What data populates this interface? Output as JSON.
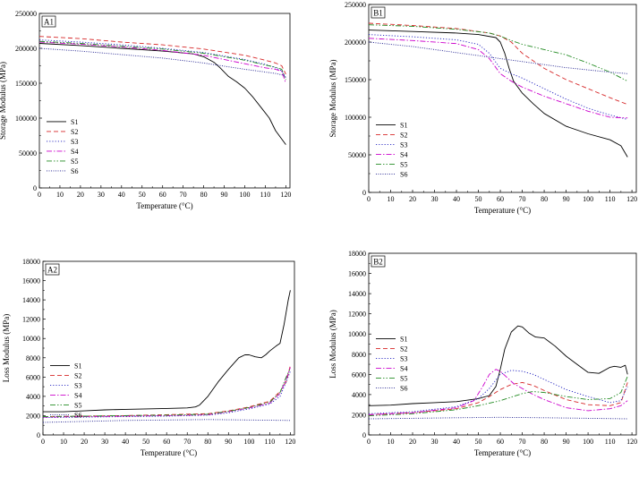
{
  "chart_data": [
    {
      "panel_label": "A1",
      "type": "line",
      "xlabel": "Temperature (°C)",
      "ylabel": "Storage Modulus (MPa)",
      "xlim": [
        0,
        122
      ],
      "ylim": [
        0,
        250000
      ],
      "xticks": [
        "0",
        "10",
        "20",
        "30",
        "40",
        "50",
        "60",
        "70",
        "80",
        "90",
        "100",
        "110",
        "120"
      ],
      "yticks": [
        "0",
        "50000",
        "100000",
        "150000",
        "200000",
        "250000"
      ],
      "grid": false,
      "legend": "bottom-left",
      "series": [
        {
          "name": "S1",
          "style": "solid",
          "color": "#000000",
          "x": [
            0,
            20,
            40,
            60,
            75,
            80,
            85,
            88,
            92,
            96,
            100,
            104,
            108,
            112,
            115,
            118,
            120
          ],
          "y": [
            207000,
            204000,
            200000,
            196000,
            192000,
            188000,
            180000,
            172000,
            160000,
            152000,
            143000,
            130000,
            115000,
            100000,
            82000,
            70000,
            62000
          ]
        },
        {
          "name": "S2",
          "style": "dash",
          "color": "#d62728",
          "x": [
            0,
            20,
            40,
            60,
            80,
            100,
            110,
            115,
            118,
            120
          ],
          "y": [
            217000,
            214000,
            209000,
            205000,
            199000,
            190000,
            183000,
            179000,
            175000,
            163000
          ]
        },
        {
          "name": "S3",
          "style": "dot",
          "color": "#1f1fbf",
          "x": [
            0,
            20,
            40,
            60,
            80,
            100,
            110,
            115,
            118,
            120
          ],
          "y": [
            212000,
            209000,
            205000,
            200000,
            194000,
            184000,
            177000,
            172000,
            168000,
            158000
          ]
        },
        {
          "name": "S4",
          "style": "dashdot",
          "color": "#cc00cc",
          "x": [
            0,
            20,
            40,
            60,
            80,
            100,
            110,
            115,
            118,
            120
          ],
          "y": [
            209000,
            206000,
            202000,
            197000,
            190000,
            178000,
            172000,
            170000,
            167000,
            150000
          ]
        },
        {
          "name": "S5",
          "style": "dashdotdot",
          "color": "#228b22",
          "x": [
            0,
            20,
            40,
            60,
            80,
            100,
            110,
            115,
            118,
            120
          ],
          "y": [
            210000,
            207000,
            203000,
            199000,
            193000,
            183000,
            176000,
            173000,
            170000,
            155000
          ]
        },
        {
          "name": "S6",
          "style": "shortdot",
          "color": "#1a1a8c",
          "x": [
            0,
            20,
            40,
            60,
            80,
            100,
            110,
            115,
            118,
            120
          ],
          "y": [
            200000,
            196000,
            191000,
            186000,
            179000,
            170000,
            166000,
            164000,
            162000,
            160000
          ]
        }
      ]
    },
    {
      "panel_label": "B1",
      "type": "line",
      "xlabel": "Temperature (°C)",
      "ylabel": "Storage Modulus (MPa)",
      "xlim": [
        0,
        122
      ],
      "ylim": [
        0,
        250000
      ],
      "xticks": [
        "0",
        "10",
        "20",
        "30",
        "40",
        "50",
        "60",
        "70",
        "80",
        "90",
        "100",
        "110",
        "120"
      ],
      "yticks": [
        "0",
        "50000",
        "100000",
        "150000",
        "200000",
        "250000"
      ],
      "grid": false,
      "legend": "bottom-left",
      "series": [
        {
          "name": "S1",
          "style": "solid",
          "color": "#000000",
          "x": [
            0,
            20,
            40,
            50,
            58,
            60,
            62,
            64,
            66,
            70,
            75,
            80,
            90,
            100,
            110,
            115,
            118
          ],
          "y": [
            216000,
            214000,
            212000,
            210000,
            206000,
            200000,
            185000,
            165000,
            148000,
            132000,
            118000,
            105000,
            88000,
            78000,
            70000,
            62000,
            47000
          ]
        },
        {
          "name": "S2",
          "style": "dash",
          "color": "#d62728",
          "x": [
            0,
            20,
            40,
            55,
            60,
            65,
            70,
            80,
            90,
            100,
            110,
            118
          ],
          "y": [
            225000,
            222000,
            218000,
            212000,
            208000,
            200000,
            185000,
            165000,
            150000,
            138000,
            126000,
            117000
          ]
        },
        {
          "name": "S3",
          "style": "dot",
          "color": "#1f1fbf",
          "x": [
            0,
            20,
            40,
            50,
            55,
            60,
            65,
            70,
            80,
            90,
            100,
            110,
            118
          ],
          "y": [
            210000,
            207000,
            203000,
            197000,
            185000,
            165000,
            158000,
            152000,
            138000,
            124000,
            112000,
            103000,
            97000
          ]
        },
        {
          "name": "S4",
          "style": "dashdot",
          "color": "#cc00cc",
          "x": [
            0,
            20,
            40,
            50,
            55,
            60,
            65,
            70,
            80,
            90,
            100,
            110,
            118
          ],
          "y": [
            205000,
            202000,
            198000,
            190000,
            178000,
            158000,
            148000,
            140000,
            128000,
            118000,
            108000,
            100000,
            99000
          ]
        },
        {
          "name": "S5",
          "style": "dashdotdot",
          "color": "#228b22",
          "x": [
            0,
            20,
            40,
            55,
            60,
            65,
            70,
            80,
            90,
            100,
            110,
            118
          ],
          "y": [
            223000,
            221000,
            217000,
            212000,
            208000,
            202000,
            197000,
            190000,
            183000,
            172000,
            160000,
            148000
          ]
        },
        {
          "name": "S6",
          "style": "shortdot",
          "color": "#1a1a8c",
          "x": [
            0,
            10,
            20,
            30,
            40,
            50,
            60,
            70,
            80,
            90,
            100,
            110,
            118
          ],
          "y": [
            200000,
            197000,
            194000,
            190000,
            186000,
            182000,
            178000,
            174000,
            170000,
            166000,
            163000,
            160000,
            158000
          ]
        }
      ]
    },
    {
      "panel_label": "A2",
      "type": "line",
      "xlabel": "Temperature (°C)",
      "ylabel": "Loss Modulus (MPa)",
      "xlim": [
        0,
        122
      ],
      "ylim": [
        0,
        18000
      ],
      "xticks": [
        "0",
        "10",
        "20",
        "30",
        "40",
        "50",
        "60",
        "70",
        "80",
        "90",
        "100",
        "110",
        "120"
      ],
      "yticks": [
        "0",
        "2000",
        "4000",
        "6000",
        "8000",
        "10000",
        "12000",
        "14000",
        "16000",
        "18000"
      ],
      "grid": false,
      "legend": "left",
      "series": [
        {
          "name": "S1",
          "style": "solid",
          "color": "#000000",
          "x": [
            0,
            10,
            20,
            30,
            40,
            50,
            60,
            70,
            74,
            76,
            80,
            85,
            90,
            95,
            98,
            100,
            103,
            106,
            108,
            110,
            113,
            115,
            117,
            119,
            120
          ],
          "y": [
            2400,
            2400,
            2500,
            2600,
            2650,
            2700,
            2750,
            2800,
            2900,
            3100,
            4000,
            5500,
            6800,
            8000,
            8300,
            8300,
            8100,
            8000,
            8300,
            8700,
            9200,
            9500,
            11500,
            14000,
            15000
          ]
        },
        {
          "name": "S2",
          "style": "dash",
          "color": "#d62728",
          "x": [
            0,
            20,
            40,
            60,
            80,
            90,
            100,
            110,
            115,
            118,
            120
          ],
          "y": [
            1900,
            1950,
            2000,
            2100,
            2200,
            2500,
            2900,
            3500,
            4500,
            5500,
            7200
          ]
        },
        {
          "name": "S3",
          "style": "dot",
          "color": "#1f1fbf",
          "x": [
            0,
            20,
            40,
            60,
            80,
            90,
            100,
            110,
            115,
            118,
            120
          ],
          "y": [
            1800,
            1850,
            1900,
            1950,
            2050,
            2300,
            2700,
            3200,
            4000,
            5500,
            6600
          ]
        },
        {
          "name": "S4",
          "style": "dashdot",
          "color": "#cc00cc",
          "x": [
            0,
            20,
            40,
            60,
            80,
            90,
            100,
            110,
            115,
            118,
            120
          ],
          "y": [
            1850,
            1900,
            1950,
            2000,
            2100,
            2400,
            2800,
            3300,
            4300,
            5800,
            7000
          ]
        },
        {
          "name": "S5",
          "style": "dashdotdot",
          "color": "#228b22",
          "x": [
            0,
            20,
            40,
            60,
            80,
            90,
            100,
            110,
            115,
            118,
            120
          ],
          "y": [
            1900,
            1950,
            2000,
            2050,
            2150,
            2450,
            2850,
            3400,
            4400,
            6000,
            6900
          ]
        },
        {
          "name": "S6",
          "style": "shortdot",
          "color": "#1a1a8c",
          "x": [
            0,
            20,
            40,
            60,
            80,
            100,
            120
          ],
          "y": [
            1300,
            1400,
            1500,
            1550,
            1600,
            1550,
            1500
          ]
        }
      ]
    },
    {
      "panel_label": "B2",
      "type": "line",
      "xlabel": "Temperature (°C)",
      "ylabel": "Loss Modulus (MPa)",
      "xlim": [
        0,
        122
      ],
      "ylim": [
        0,
        18000
      ],
      "xticks": [
        "0",
        "10",
        "20",
        "30",
        "40",
        "50",
        "60",
        "70",
        "80",
        "90",
        "100",
        "110",
        "120"
      ],
      "yticks": [
        "0",
        "2000",
        "4000",
        "6000",
        "8000",
        "10000",
        "12000",
        "14000",
        "16000",
        "18000"
      ],
      "grid": false,
      "legend": "left",
      "series": [
        {
          "name": "S1",
          "style": "solid",
          "color": "#000000",
          "x": [
            0,
            10,
            20,
            30,
            40,
            50,
            55,
            58,
            60,
            62,
            65,
            68,
            70,
            73,
            76,
            80,
            85,
            90,
            95,
            100,
            105,
            110,
            112,
            115,
            117,
            118
          ],
          "y": [
            2900,
            2950,
            3100,
            3200,
            3300,
            3600,
            3900,
            4800,
            6500,
            8500,
            10200,
            10800,
            10700,
            10100,
            9700,
            9600,
            8800,
            7800,
            7000,
            6200,
            6100,
            6700,
            6800,
            6700,
            6900,
            6000
          ]
        },
        {
          "name": "S2",
          "style": "dash",
          "color": "#d62728",
          "x": [
            0,
            20,
            40,
            50,
            55,
            60,
            65,
            70,
            75,
            80,
            90,
            100,
            110,
            115,
            118
          ],
          "y": [
            2000,
            2200,
            2600,
            3200,
            3800,
            4500,
            5000,
            5200,
            4900,
            4400,
            3500,
            3000,
            2900,
            3200,
            5200
          ]
        },
        {
          "name": "S3",
          "style": "dot",
          "color": "#1f1fbf",
          "x": [
            0,
            20,
            40,
            50,
            55,
            60,
            65,
            70,
            75,
            80,
            90,
            100,
            110,
            115,
            118
          ],
          "y": [
            2100,
            2300,
            2800,
            3600,
            4600,
            6000,
            6400,
            6300,
            6000,
            5500,
            4500,
            3800,
            3200,
            3400,
            4800
          ]
        },
        {
          "name": "S4",
          "style": "dashdot",
          "color": "#cc00cc",
          "x": [
            0,
            20,
            40,
            48,
            52,
            55,
            58,
            60,
            63,
            66,
            70,
            75,
            80,
            90,
            100,
            110,
            115,
            118
          ],
          "y": [
            2000,
            2200,
            2700,
            3400,
            4800,
            6000,
            6500,
            6300,
            5700,
            5100,
            4600,
            4000,
            3500,
            2700,
            2400,
            2600,
            2900,
            3400
          ]
        },
        {
          "name": "S5",
          "style": "dashdotdot",
          "color": "#228b22",
          "x": [
            0,
            20,
            40,
            50,
            60,
            70,
            75,
            80,
            90,
            100,
            110,
            115,
            118
          ],
          "y": [
            1900,
            2100,
            2500,
            2900,
            3400,
            4100,
            4300,
            4200,
            3800,
            3500,
            3600,
            4200,
            5800
          ]
        },
        {
          "name": "S6",
          "style": "shortdot",
          "color": "#1a1a8c",
          "x": [
            0,
            20,
            40,
            60,
            80,
            100,
            118
          ],
          "y": [
            1600,
            1650,
            1700,
            1750,
            1700,
            1650,
            1600
          ]
        }
      ]
    }
  ]
}
